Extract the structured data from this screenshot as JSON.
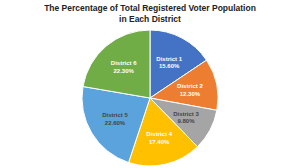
{
  "chart_data": {
    "type": "pie",
    "title": "The Percentage of Total Registered Voter Population",
    "subtitle": "in Each District",
    "categories": [
      "District 1",
      "District 2",
      "District 3",
      "District 4",
      "District 5",
      "District 6"
    ],
    "values": [
      15.6,
      12.3,
      9.8,
      17.4,
      22.6,
      22.3
    ],
    "value_labels": [
      "15.60%",
      "12.30%",
      "9.80%",
      "17.40%",
      "22.60%",
      "22.30%"
    ],
    "colors": [
      "#4472C4",
      "#ED7D31",
      "#A5A5A5",
      "#FFC000",
      "#5BA3DC",
      "#70AD47"
    ],
    "data_labels": true
  }
}
